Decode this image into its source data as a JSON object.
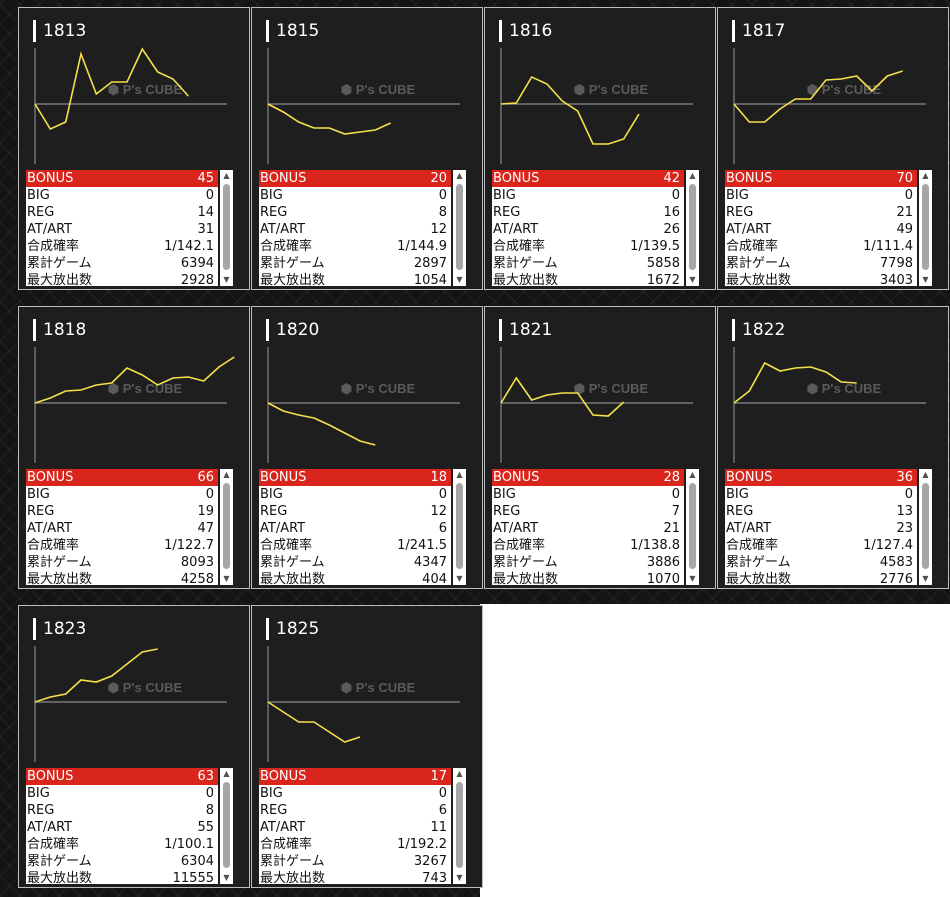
{
  "stat_labels": {
    "bonus": "BONUS",
    "big": "BIG",
    "reg": "REG",
    "art": "AT/ART",
    "prob": "合成確率",
    "games": "累計ゲーム",
    "max": "最大放出数"
  },
  "colors": {
    "accent": "#d9251c",
    "line": "#f5e14b",
    "panel": "#1e1e1e"
  },
  "icons": {
    "scroll_up": "▲",
    "scroll_down": "▼"
  },
  "machines": [
    {
      "id": "1813",
      "bonus": "45",
      "big": "0",
      "reg": "14",
      "art": "31",
      "prob": "1/142.1",
      "games": "6394",
      "max": "2928",
      "graph": [
        0,
        -25,
        -18,
        50,
        10,
        22,
        22,
        55,
        32,
        25,
        8
      ]
    },
    {
      "id": "1815",
      "bonus": "20",
      "big": "0",
      "reg": "8",
      "art": "12",
      "prob": "1/144.9",
      "games": "2897",
      "max": "1054",
      "graph": [
        0,
        -8,
        -18,
        -24,
        -24,
        -30,
        -28,
        -26,
        -19
      ]
    },
    {
      "id": "1816",
      "bonus": "42",
      "big": "0",
      "reg": "16",
      "art": "26",
      "prob": "1/139.5",
      "games": "5858",
      "max": "1672",
      "graph": [
        0,
        1,
        27,
        20,
        3,
        -7,
        -40,
        -40,
        -35,
        -10
      ]
    },
    {
      "id": "1817",
      "bonus": "70",
      "big": "0",
      "reg": "21",
      "art": "49",
      "prob": "1/111.4",
      "games": "7798",
      "max": "3403",
      "graph": [
        0,
        -18,
        -18,
        -5,
        5,
        5,
        24,
        25,
        28,
        13,
        28,
        33
      ]
    },
    {
      "id": "1818",
      "bonus": "66",
      "big": "0",
      "reg": "19",
      "art": "47",
      "prob": "1/122.7",
      "games": "8093",
      "max": "4258",
      "graph": [
        0,
        5,
        12,
        13,
        18,
        20,
        35,
        28,
        18,
        25,
        26,
        22,
        36,
        46
      ]
    },
    {
      "id": "1820",
      "bonus": "18",
      "big": "0",
      "reg": "12",
      "art": "6",
      "prob": "1/241.5",
      "games": "4347",
      "max": "404",
      "graph": [
        0,
        -8,
        -12,
        -15,
        -22,
        -30,
        -38,
        -42
      ]
    },
    {
      "id": "1821",
      "bonus": "28",
      "big": "0",
      "reg": "7",
      "art": "21",
      "prob": "1/138.8",
      "games": "3886",
      "max": "1070",
      "graph": [
        0,
        25,
        3,
        8,
        10,
        10,
        -12,
        -13,
        1
      ]
    },
    {
      "id": "1822",
      "bonus": "36",
      "big": "0",
      "reg": "13",
      "art": "23",
      "prob": "1/127.4",
      "games": "4583",
      "max": "2776",
      "graph": [
        0,
        12,
        40,
        32,
        35,
        36,
        31,
        21,
        20
      ]
    },
    {
      "id": "1823",
      "bonus": "63",
      "big": "0",
      "reg": "8",
      "art": "55",
      "prob": "1/100.1",
      "games": "6304",
      "max": "11555",
      "graph": [
        0,
        5,
        8,
        22,
        20,
        26,
        38,
        50,
        53
      ]
    },
    {
      "id": "1825",
      "bonus": "17",
      "big": "0",
      "reg": "6",
      "art": "11",
      "prob": "1/192.2",
      "games": "3267",
      "max": "743",
      "graph": [
        0,
        -10,
        -20,
        -20,
        -30,
        -40,
        -35
      ]
    }
  ]
}
